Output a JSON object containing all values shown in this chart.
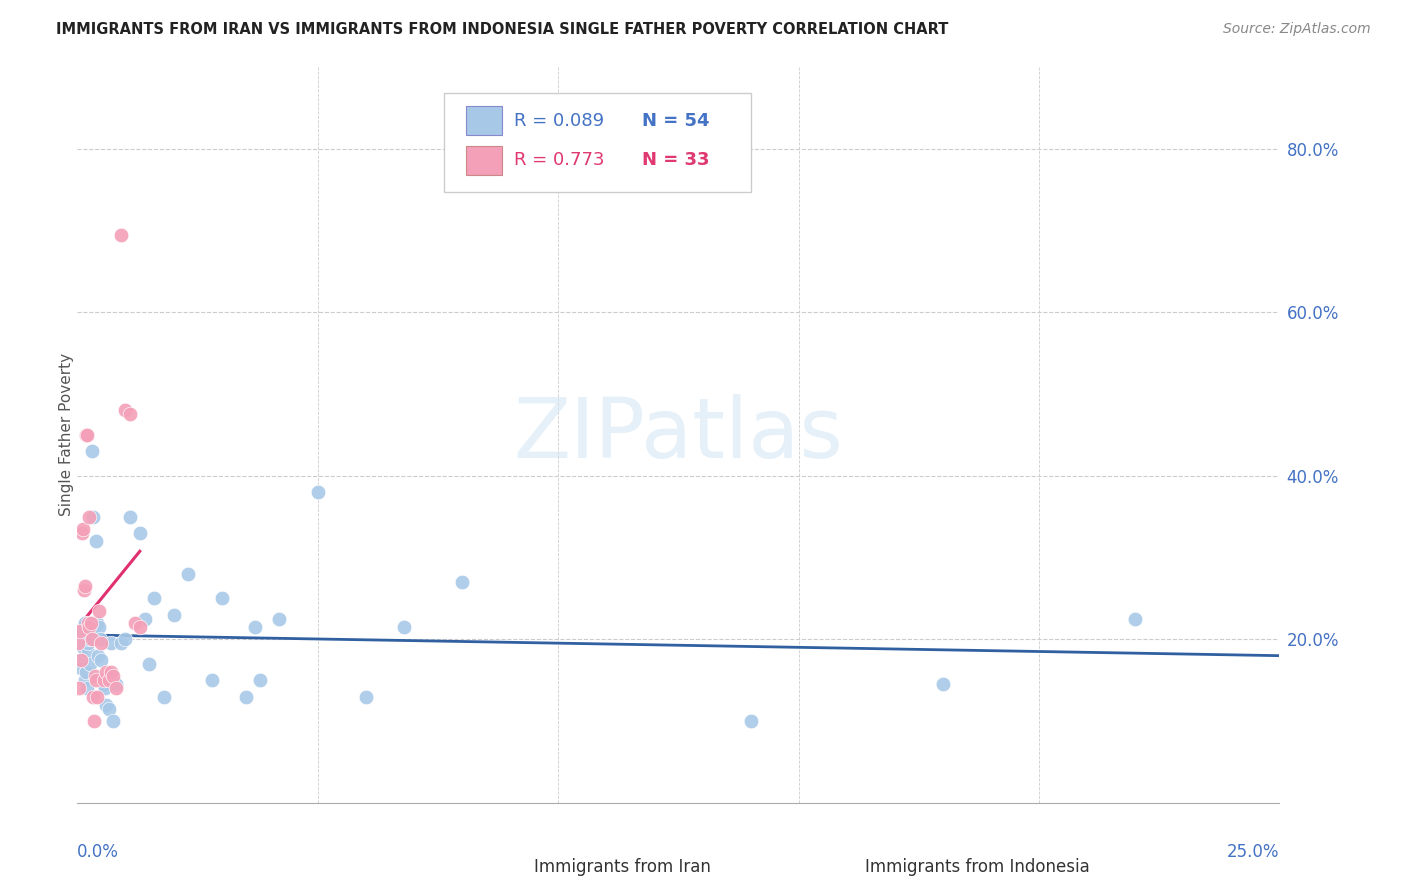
{
  "title": "IMMIGRANTS FROM IRAN VS IMMIGRANTS FROM INDONESIA SINGLE FATHER POVERTY CORRELATION CHART",
  "source": "Source: ZipAtlas.com",
  "ylabel": "Single Father Poverty",
  "right_yticklabels": [
    "20.0%",
    "40.0%",
    "60.0%",
    "80.0%"
  ],
  "right_yticks": [
    0.2,
    0.4,
    0.6,
    0.8
  ],
  "iran_color": "#a8c8e8",
  "indonesia_color": "#f4a0b8",
  "iran_trend_color": "#3060a0",
  "indonesia_trend_color": "#e03070",
  "background_color": "#ffffff",
  "watermark_text": "ZIPatlas",
  "iran_x": [
    0.0002,
    0.0005,
    0.0008,
    0.001,
    0.0012,
    0.0013,
    0.0015,
    0.0016,
    0.0018,
    0.002,
    0.0022,
    0.0023,
    0.0025,
    0.0027,
    0.003,
    0.0032,
    0.0033,
    0.0035,
    0.0038,
    0.004,
    0.0042,
    0.0045,
    0.0048,
    0.005,
    0.0055,
    0.0058,
    0.006,
    0.0065,
    0.007,
    0.0075,
    0.008,
    0.009,
    0.01,
    0.011,
    0.013,
    0.014,
    0.015,
    0.016,
    0.018,
    0.02,
    0.023,
    0.028,
    0.03,
    0.035,
    0.037,
    0.038,
    0.042,
    0.05,
    0.06,
    0.068,
    0.08,
    0.14,
    0.18,
    0.22
  ],
  "iran_y": [
    0.2,
    0.175,
    0.165,
    0.21,
    0.19,
    0.2,
    0.22,
    0.15,
    0.16,
    0.14,
    0.185,
    0.195,
    0.2,
    0.17,
    0.43,
    0.35,
    0.2,
    0.21,
    0.32,
    0.22,
    0.18,
    0.215,
    0.2,
    0.175,
    0.145,
    0.14,
    0.12,
    0.115,
    0.195,
    0.1,
    0.145,
    0.195,
    0.2,
    0.35,
    0.33,
    0.225,
    0.17,
    0.25,
    0.13,
    0.23,
    0.28,
    0.15,
    0.25,
    0.13,
    0.215,
    0.15,
    0.225,
    0.38,
    0.13,
    0.215,
    0.27,
    0.1,
    0.145,
    0.225
  ],
  "indonesia_x": [
    0.0002,
    0.0004,
    0.0006,
    0.0008,
    0.001,
    0.0012,
    0.0013,
    0.0015,
    0.0018,
    0.002,
    0.0022,
    0.0024,
    0.0025,
    0.0028,
    0.003,
    0.0032,
    0.0034,
    0.0036,
    0.0038,
    0.004,
    0.0045,
    0.005,
    0.0055,
    0.006,
    0.0065,
    0.007,
    0.0075,
    0.008,
    0.009,
    0.01,
    0.011,
    0.012,
    0.013
  ],
  "indonesia_y": [
    0.195,
    0.14,
    0.21,
    0.175,
    0.33,
    0.335,
    0.26,
    0.265,
    0.45,
    0.45,
    0.22,
    0.215,
    0.35,
    0.22,
    0.2,
    0.13,
    0.1,
    0.155,
    0.15,
    0.13,
    0.235,
    0.195,
    0.15,
    0.16,
    0.15,
    0.16,
    0.155,
    0.14,
    0.695,
    0.48,
    0.475,
    0.22,
    0.215
  ],
  "xlim": [
    0.0,
    0.25
  ],
  "ylim": [
    0.0,
    0.9
  ],
  "legend_iran_r": "R = 0.089",
  "legend_iran_n": "N = 54",
  "legend_indo_r": "R = 0.773",
  "legend_indo_n": "N = 33",
  "legend_label_iran": "Immigrants from Iran",
  "legend_label_indo": "Immigrants from Indonesia"
}
